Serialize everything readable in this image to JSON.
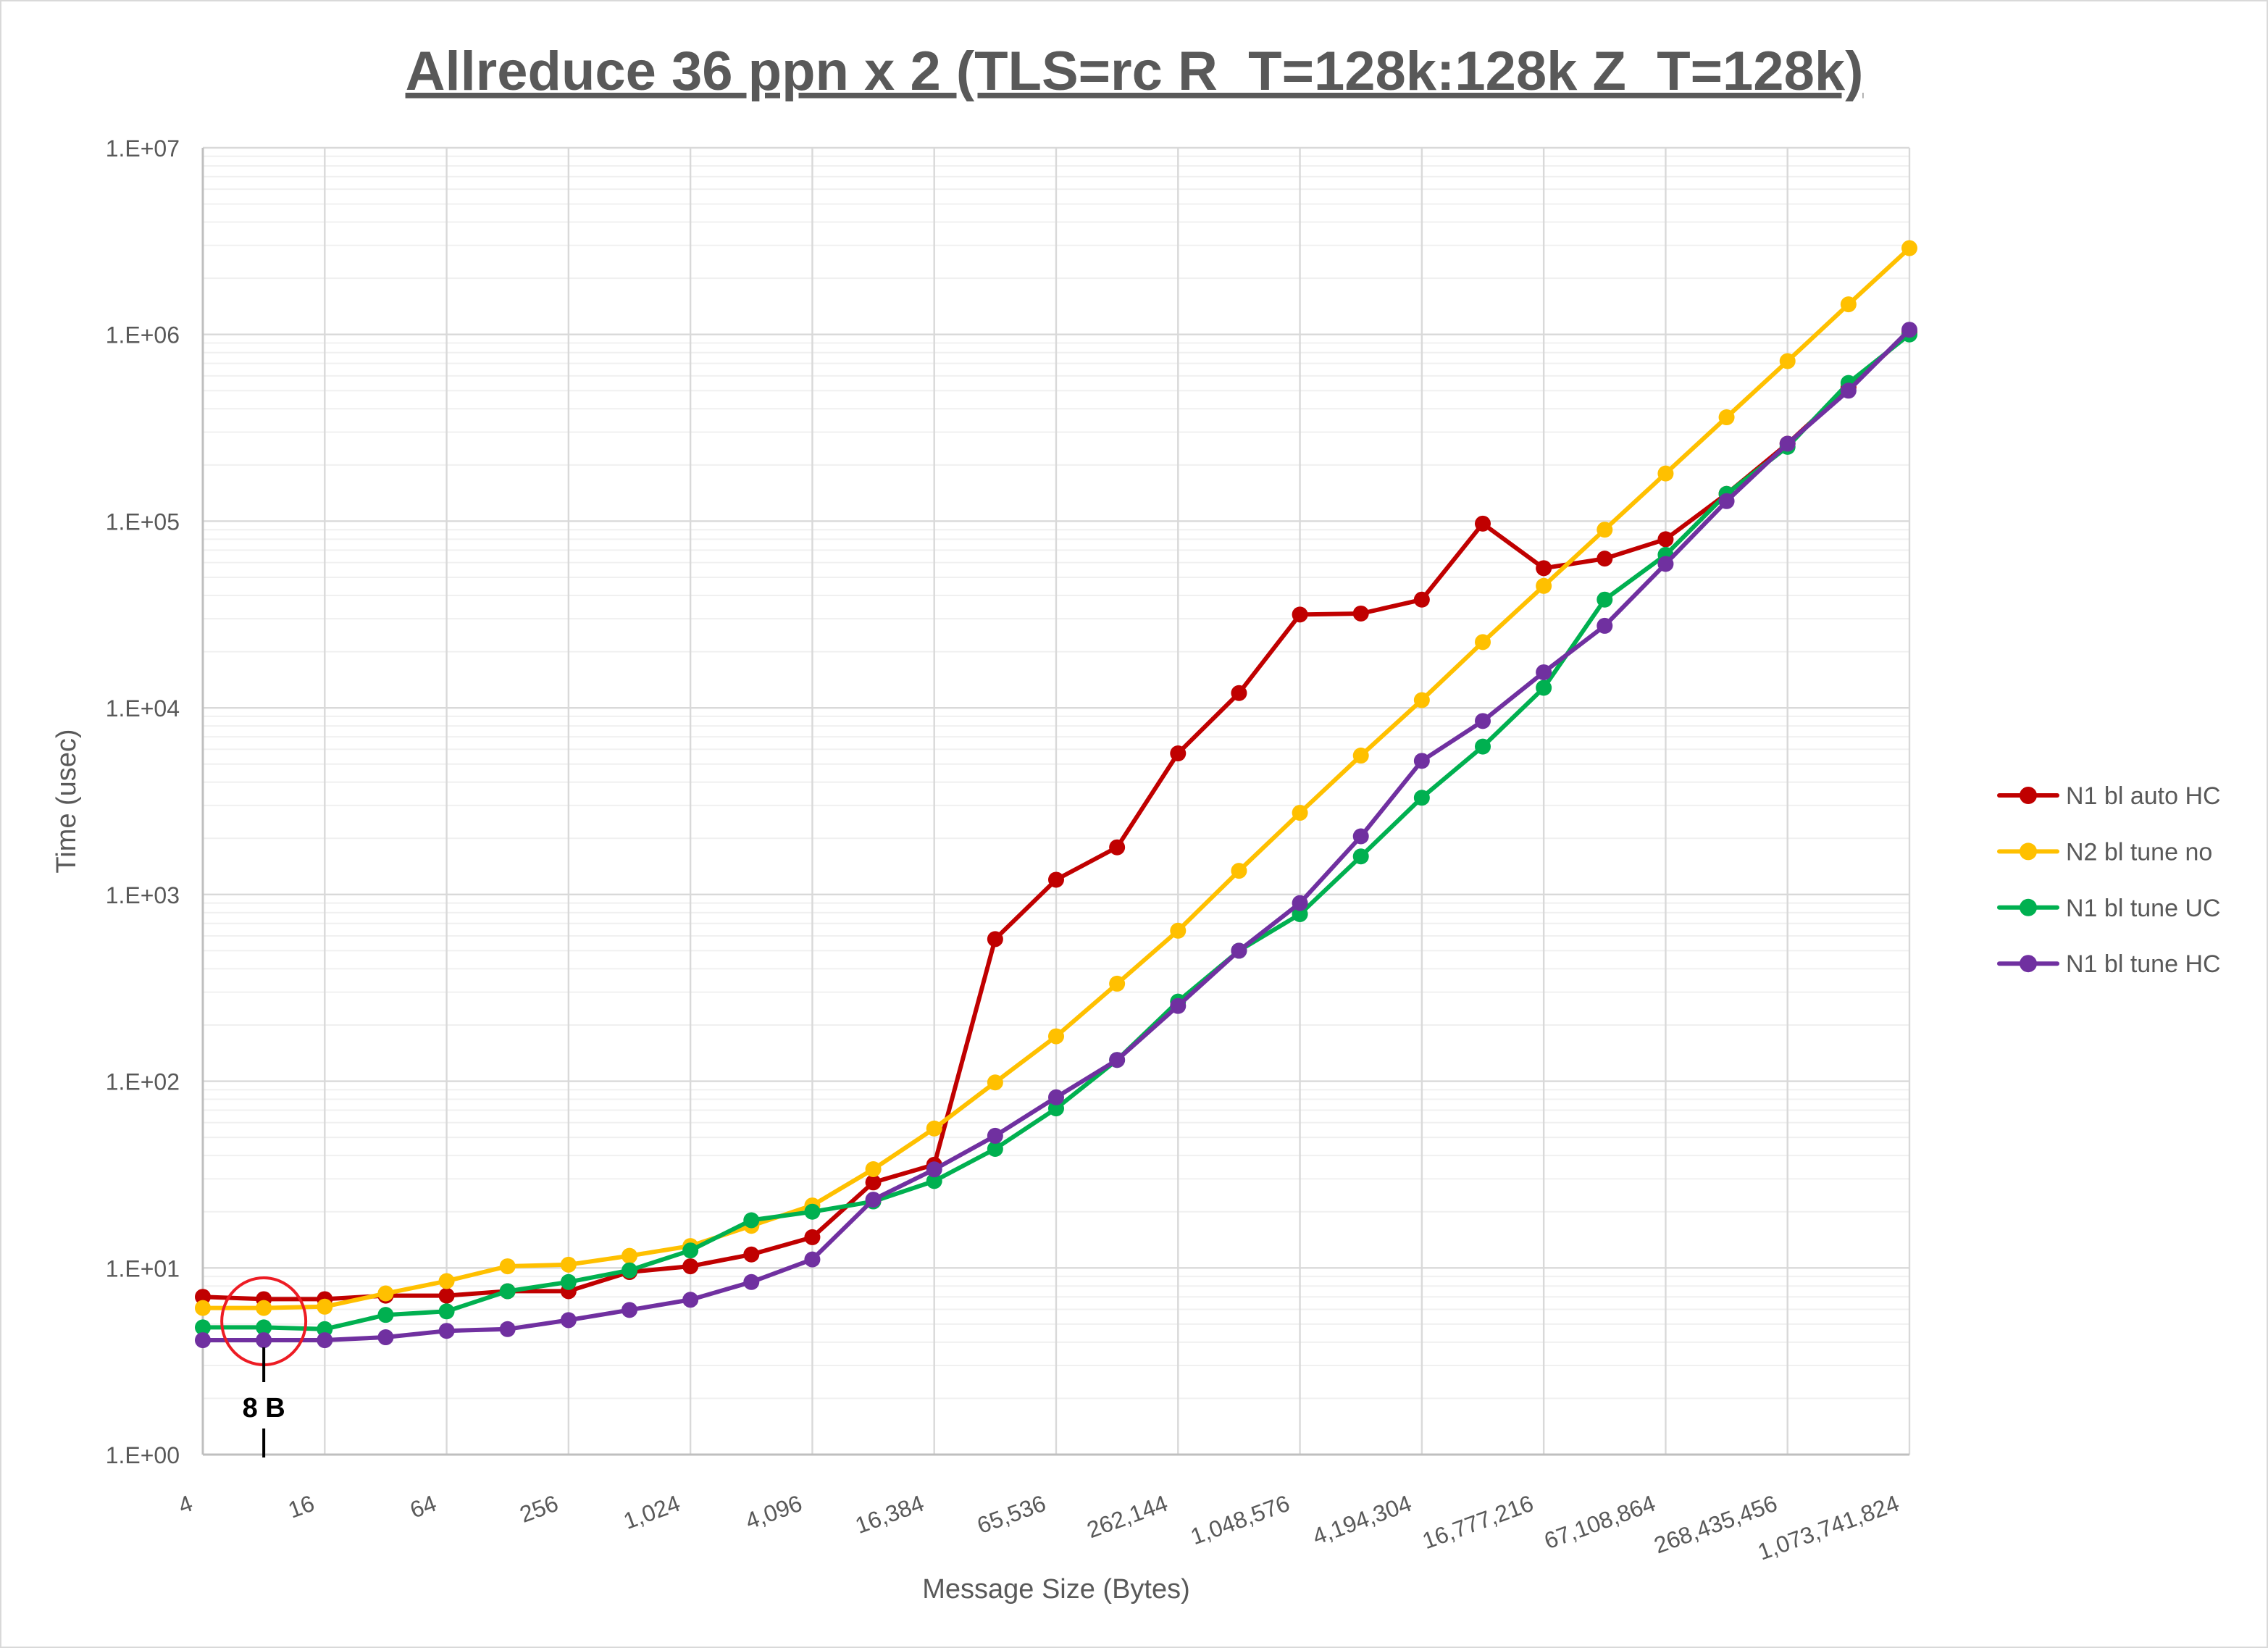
{
  "chart_data": {
    "type": "line",
    "title": "Allreduce 36 ppn x 2 (TLS=rc R_T=128k:128k Z_T=128k)",
    "xlabel": "Message Size (Bytes)",
    "ylabel": "Time (usec)",
    "x_scale": "log2",
    "y_scale": "log10",
    "xlim": [
      4,
      1073741824
    ],
    "ylim": [
      1,
      10000000
    ],
    "grid": true,
    "legend_position": "right",
    "x_tick_labels": [
      "4",
      "16",
      "64",
      "256",
      "1,024",
      "4,096",
      "16,384",
      "65,536",
      "262,144",
      "1,048,576",
      "4,194,304",
      "16,777,216",
      "67,108,864",
      "268,435,456",
      "1,073,741,824"
    ],
    "y_tick_labels": [
      "1.E+00",
      "1.E+01",
      "1.E+02",
      "1.E+03",
      "1.E+04",
      "1.E+05",
      "1.E+06",
      "1.E+07"
    ],
    "x": [
      4,
      8,
      16,
      32,
      64,
      128,
      256,
      512,
      1024,
      2048,
      4096,
      8192,
      16384,
      32768,
      65536,
      131072,
      262144,
      524288,
      1048576,
      2097152,
      4194304,
      8388608,
      16777216,
      33554432,
      67108864,
      134217728,
      268435456,
      536870912,
      1073741824
    ],
    "series": [
      {
        "name": "N1 bl auto HC",
        "color": "#C00000",
        "values": [
          7.0,
          6.8,
          6.8,
          7.1,
          7.1,
          7.5,
          7.5,
          9.5,
          10.2,
          11.8,
          14.6,
          28.7,
          35.7,
          577,
          1200,
          1790,
          5700,
          12000,
          31600,
          32000,
          38000,
          97000,
          56000,
          63000,
          80000,
          140000,
          260000,
          520000,
          1030000
        ]
      },
      {
        "name": "N2 bl tune no",
        "color": "#FFC000",
        "values": [
          6.1,
          6.1,
          6.2,
          7.3,
          8.5,
          10.2,
          10.4,
          11.6,
          13.1,
          16.8,
          21.6,
          33.8,
          55.8,
          98.5,
          174,
          333,
          640,
          1340,
          2740,
          5550,
          11000,
          22500,
          45000,
          90000,
          180000,
          360000,
          720000,
          1450000,
          2900000
        ]
      },
      {
        "name": "N1 bl tune UC",
        "color": "#00B050",
        "values": [
          4.8,
          4.8,
          4.7,
          5.6,
          5.85,
          7.5,
          8.4,
          9.7,
          12.4,
          18.0,
          20.0,
          22.7,
          29.2,
          43.4,
          71.5,
          130,
          267,
          500,
          785,
          1600,
          3300,
          6200,
          12800,
          38000,
          66000,
          140000,
          250000,
          550000,
          1000000
        ]
      },
      {
        "name": "N1 bl tune HC",
        "color": "#7030A0",
        "values": [
          4.1,
          4.1,
          4.1,
          4.25,
          4.6,
          4.7,
          5.25,
          5.95,
          6.75,
          8.4,
          11.1,
          23.2,
          33.7,
          51,
          82,
          130,
          253,
          500,
          900,
          2050,
          5200,
          8500,
          15500,
          27500,
          59000,
          128000,
          260000,
          500000,
          1060000
        ]
      }
    ],
    "annotations": [
      {
        "text": "8 B",
        "x": 8,
        "color": "#ED1C24"
      }
    ]
  }
}
